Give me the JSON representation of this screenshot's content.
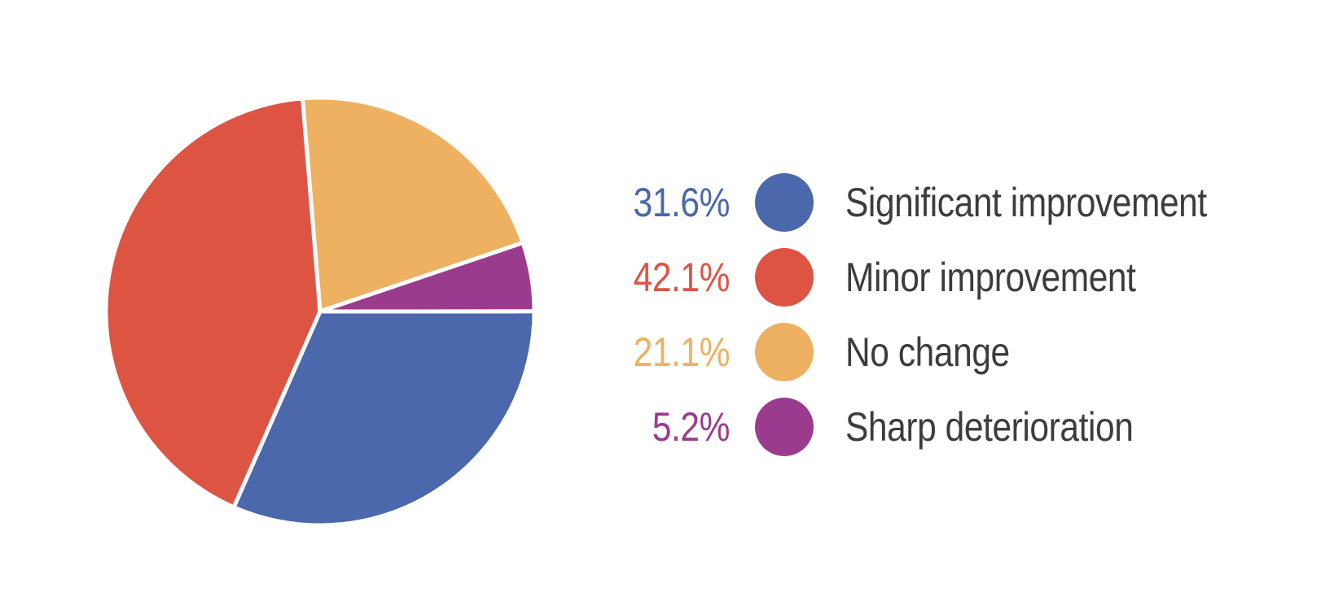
{
  "chart_data": {
    "type": "pie",
    "title": "",
    "slices": [
      {
        "label": "Significant improvement",
        "value": 31.6,
        "value_display": "31.6%",
        "color": "#4A68AB"
      },
      {
        "label": "Minor improvement",
        "value": 42.1,
        "value_display": "42.1%",
        "color": "#DD5443"
      },
      {
        "label": "No change",
        "value": 21.1,
        "value_display": "21.1%",
        "color": "#EEB161"
      },
      {
        "label": "Sharp deterioration",
        "value": 5.2,
        "value_display": "5.2%",
        "color": "#9B3B8D"
      }
    ],
    "pie_layout": {
      "start_angle_deg": -4.7,
      "direction": "clockwise",
      "slice_draw_order": [
        2,
        3,
        0,
        1
      ],
      "separator_color": "#FFFFFF",
      "separator_width": 5
    },
    "legend": {
      "position": "right",
      "label_text_color": "#3C3C3C"
    },
    "background_color": "#FFFFFF"
  }
}
